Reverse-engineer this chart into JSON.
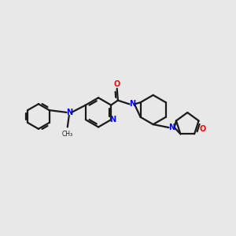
{
  "bg_color": "#e8e8e8",
  "bond_color": "#1a1a1a",
  "nitrogen_color": "#0000ff",
  "oxygen_color": "#ff0000",
  "line_width": 1.6,
  "fig_width": 3.0,
  "fig_height": 3.0,
  "dpi": 100,
  "xlim": [
    -3.5,
    4.0
  ],
  "ylim": [
    -2.0,
    2.0
  ]
}
